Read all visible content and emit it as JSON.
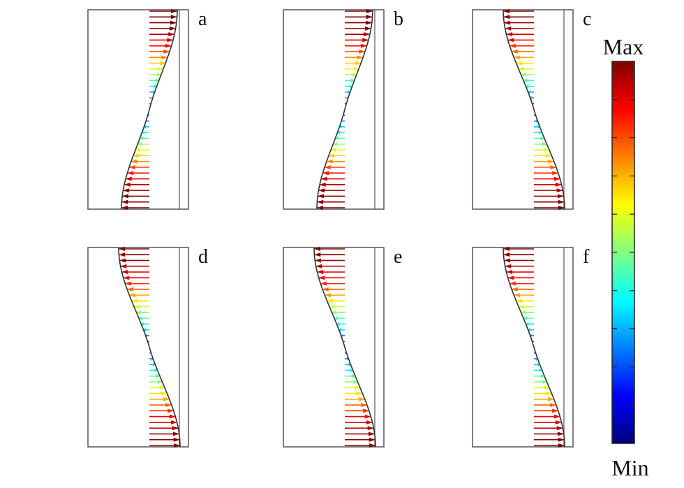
{
  "panels": [
    {
      "id": "a",
      "label": "a",
      "shape": "s-left",
      "amplitude": 0.35
    },
    {
      "id": "b",
      "label": "b",
      "shape": "s-left",
      "amplitude": 0.25
    },
    {
      "id": "c",
      "label": "c",
      "shape": "s-right",
      "amplitude": 1.0
    },
    {
      "id": "d",
      "label": "d",
      "shape": "s-right",
      "amplitude": 1.0
    },
    {
      "id": "e",
      "label": "e",
      "shape": "s-right",
      "amplitude": 0.95
    },
    {
      "id": "f",
      "label": "f",
      "shape": "s-right",
      "amplitude": 0.9
    }
  ],
  "colorbar": {
    "max_label": "Max",
    "min_label": "Min",
    "colormap": "jet",
    "stops": [
      "#00007f",
      "#0000ff",
      "#007fff",
      "#00ffff",
      "#7fff7f",
      "#ffff00",
      "#ff7f00",
      "#ff0000",
      "#7f0000"
    ]
  },
  "colors": {
    "frame": "#555555",
    "curve": "#333333"
  }
}
